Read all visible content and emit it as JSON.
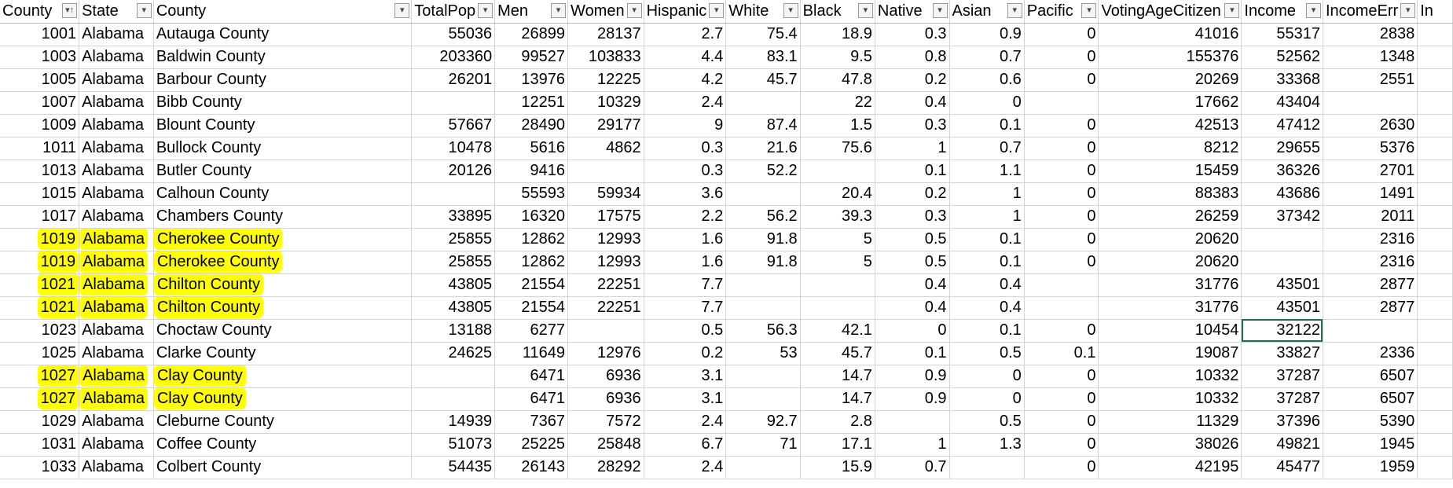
{
  "headers": [
    {
      "label": "County",
      "filter_icon": "sort-ascending-filter-icon"
    },
    {
      "label": "State",
      "filter_icon": "filter-dropdown-icon"
    },
    {
      "label": "County",
      "filter_icon": "filter-dropdown-icon"
    },
    {
      "label": "TotalPop",
      "filter_icon": "filter-dropdown-icon"
    },
    {
      "label": "Men",
      "filter_icon": "filter-dropdown-icon"
    },
    {
      "label": "Women",
      "filter_icon": "filter-dropdown-icon"
    },
    {
      "label": "Hispanic",
      "filter_icon": "filter-dropdown-icon"
    },
    {
      "label": "White",
      "filter_icon": "filter-dropdown-icon"
    },
    {
      "label": "Black",
      "filter_icon": "filter-dropdown-icon"
    },
    {
      "label": "Native",
      "filter_icon": "filter-dropdown-icon"
    },
    {
      "label": "Asian",
      "filter_icon": "filter-dropdown-icon"
    },
    {
      "label": "Pacific",
      "filter_icon": "filter-dropdown-icon"
    },
    {
      "label": "VotingAgeCitizen",
      "filter_icon": "filter-dropdown-icon"
    },
    {
      "label": "Income",
      "filter_icon": "filter-dropdown-icon"
    },
    {
      "label": "IncomeErr",
      "filter_icon": "filter-dropdown-icon"
    },
    {
      "label": "In",
      "filter_icon": ""
    }
  ],
  "rows": [
    {
      "cells": [
        "1001",
        "Alabama",
        "Autauga County",
        "55036",
        "26899",
        "28137",
        "2.7",
        "75.4",
        "18.9",
        "0.3",
        "0.9",
        "0",
        "41016",
        "55317",
        "2838",
        ""
      ],
      "highlight": false
    },
    {
      "cells": [
        "1003",
        "Alabama",
        "Baldwin County",
        "203360",
        "99527",
        "103833",
        "4.4",
        "83.1",
        "9.5",
        "0.8",
        "0.7",
        "0",
        "155376",
        "52562",
        "1348",
        ""
      ],
      "highlight": false
    },
    {
      "cells": [
        "1005",
        "Alabama",
        "Barbour County",
        "26201",
        "13976",
        "12225",
        "4.2",
        "45.7",
        "47.8",
        "0.2",
        "0.6",
        "0",
        "20269",
        "33368",
        "2551",
        ""
      ],
      "highlight": false
    },
    {
      "cells": [
        "1007",
        "Alabama",
        "Bibb County",
        "",
        "12251",
        "10329",
        "2.4",
        "",
        "22",
        "0.4",
        "0",
        "",
        "17662",
        "43404",
        "",
        ""
      ],
      "highlight": false
    },
    {
      "cells": [
        "1009",
        "Alabama",
        "Blount County",
        "57667",
        "28490",
        "29177",
        "9",
        "87.4",
        "1.5",
        "0.3",
        "0.1",
        "0",
        "42513",
        "47412",
        "2630",
        ""
      ],
      "highlight": false
    },
    {
      "cells": [
        "1011",
        "Alabama",
        "Bullock County",
        "10478",
        "5616",
        "4862",
        "0.3",
        "21.6",
        "75.6",
        "1",
        "0.7",
        "0",
        "8212",
        "29655",
        "5376",
        ""
      ],
      "highlight": false
    },
    {
      "cells": [
        "1013",
        "Alabama",
        "Butler County",
        "20126",
        "9416",
        "",
        "0.3",
        "52.2",
        "",
        "0.1",
        "1.1",
        "0",
        "15459",
        "36326",
        "2701",
        ""
      ],
      "highlight": false
    },
    {
      "cells": [
        "1015",
        "Alabama",
        "Calhoun County",
        "",
        "55593",
        "59934",
        "3.6",
        "",
        "20.4",
        "0.2",
        "1",
        "0",
        "88383",
        "43686",
        "1491",
        ""
      ],
      "highlight": false
    },
    {
      "cells": [
        "1017",
        "Alabama",
        "Chambers County",
        "33895",
        "16320",
        "17575",
        "2.2",
        "56.2",
        "39.3",
        "0.3",
        "1",
        "0",
        "26259",
        "37342",
        "2011",
        ""
      ],
      "highlight": false
    },
    {
      "cells": [
        "1019",
        "Alabama",
        "Cherokee County",
        "25855",
        "12862",
        "12993",
        "1.6",
        "91.8",
        "5",
        "0.5",
        "0.1",
        "0",
        "20620",
        "",
        "2316",
        ""
      ],
      "highlight": true
    },
    {
      "cells": [
        "1019",
        "Alabama",
        "Cherokee County",
        "25855",
        "12862",
        "12993",
        "1.6",
        "91.8",
        "5",
        "0.5",
        "0.1",
        "0",
        "20620",
        "",
        "2316",
        ""
      ],
      "highlight": true
    },
    {
      "cells": [
        "1021",
        "Alabama",
        "Chilton County",
        "43805",
        "21554",
        "22251",
        "7.7",
        "",
        "",
        "0.4",
        "0.4",
        "",
        "31776",
        "43501",
        "2877",
        ""
      ],
      "highlight": true
    },
    {
      "cells": [
        "1021",
        "Alabama",
        "Chilton County",
        "43805",
        "21554",
        "22251",
        "7.7",
        "",
        "",
        "0.4",
        "0.4",
        "",
        "31776",
        "43501",
        "2877",
        ""
      ],
      "highlight": true
    },
    {
      "cells": [
        "1023",
        "Alabama",
        "Choctaw County",
        "13188",
        "6277",
        "",
        "0.5",
        "56.3",
        "42.1",
        "0",
        "0.1",
        "0",
        "10454",
        "32122",
        "",
        ""
      ],
      "highlight": false,
      "selected_col": 13
    },
    {
      "cells": [
        "1025",
        "Alabama",
        "Clarke County",
        "24625",
        "11649",
        "12976",
        "0.2",
        "53",
        "45.7",
        "0.1",
        "0.5",
        "0.1",
        "19087",
        "33827",
        "2336",
        ""
      ],
      "highlight": false
    },
    {
      "cells": [
        "1027",
        "Alabama",
        "Clay County",
        "",
        "6471",
        "6936",
        "3.1",
        "",
        "14.7",
        "0.9",
        "0",
        "0",
        "10332",
        "37287",
        "6507",
        ""
      ],
      "highlight": true
    },
    {
      "cells": [
        "1027",
        "Alabama",
        "Clay County",
        "",
        "6471",
        "6936",
        "3.1",
        "",
        "14.7",
        "0.9",
        "0",
        "0",
        "10332",
        "37287",
        "6507",
        ""
      ],
      "highlight": true
    },
    {
      "cells": [
        "1029",
        "Alabama",
        "Cleburne County",
        "14939",
        "7367",
        "7572",
        "2.4",
        "92.7",
        "2.8",
        "",
        "0.5",
        "0",
        "11329",
        "37396",
        "5390",
        ""
      ],
      "highlight": false
    },
    {
      "cells": [
        "1031",
        "Alabama",
        "Coffee County",
        "51073",
        "25225",
        "25848",
        "6.7",
        "71",
        "17.1",
        "1",
        "1.3",
        "0",
        "38026",
        "49821",
        "1945",
        ""
      ],
      "highlight": false
    },
    {
      "cells": [
        "1033",
        "Alabama",
        "Colbert County",
        "54435",
        "26143",
        "28292",
        "2.4",
        "",
        "15.9",
        "0.7",
        "",
        "0",
        "42195",
        "45477",
        "1959",
        ""
      ],
      "highlight": false
    }
  ],
  "colors": {
    "highlight": "#ffff00",
    "selection": "#1e7145",
    "grid": "#d4d4d4"
  }
}
